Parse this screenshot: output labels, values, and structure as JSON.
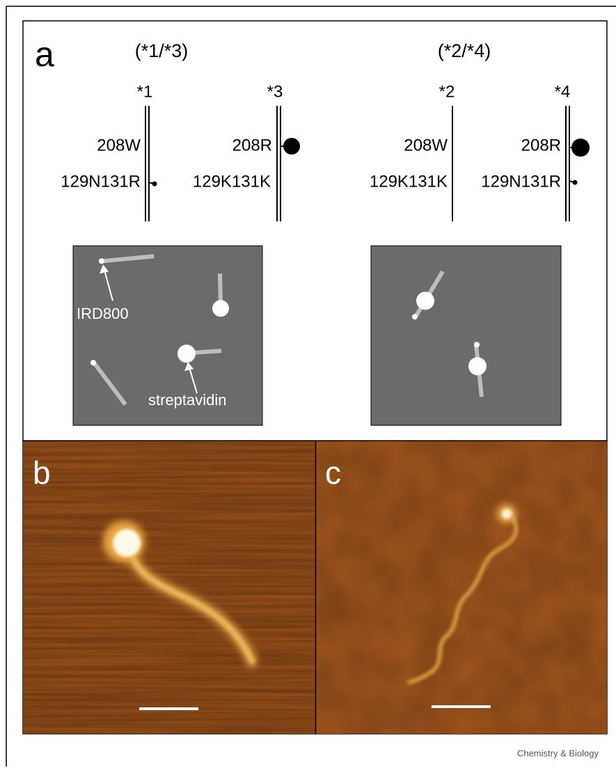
{
  "panel_a": {
    "label": "a",
    "groups": [
      {
        "title": "(*1/*3)",
        "alleles": [
          {
            "name": "*1",
            "codon208": "208W",
            "codons129_131": "129N131R"
          },
          {
            "name": "*3",
            "codon208": "208R",
            "codons129_131": "129K131K"
          }
        ]
      },
      {
        "title": "(*2/*4)",
        "alleles": [
          {
            "name": "*2",
            "codon208": "208W",
            "codons129_131": "129K131K"
          },
          {
            "name": "*4",
            "codon208": "208R",
            "codons129_131": "129N131R"
          }
        ]
      }
    ],
    "schematic_labels": [
      "IRD800",
      "streptavidin"
    ]
  },
  "panel_b": {
    "label": "b"
  },
  "panel_c": {
    "label": "c"
  },
  "credit": "Chemistry & Biology"
}
